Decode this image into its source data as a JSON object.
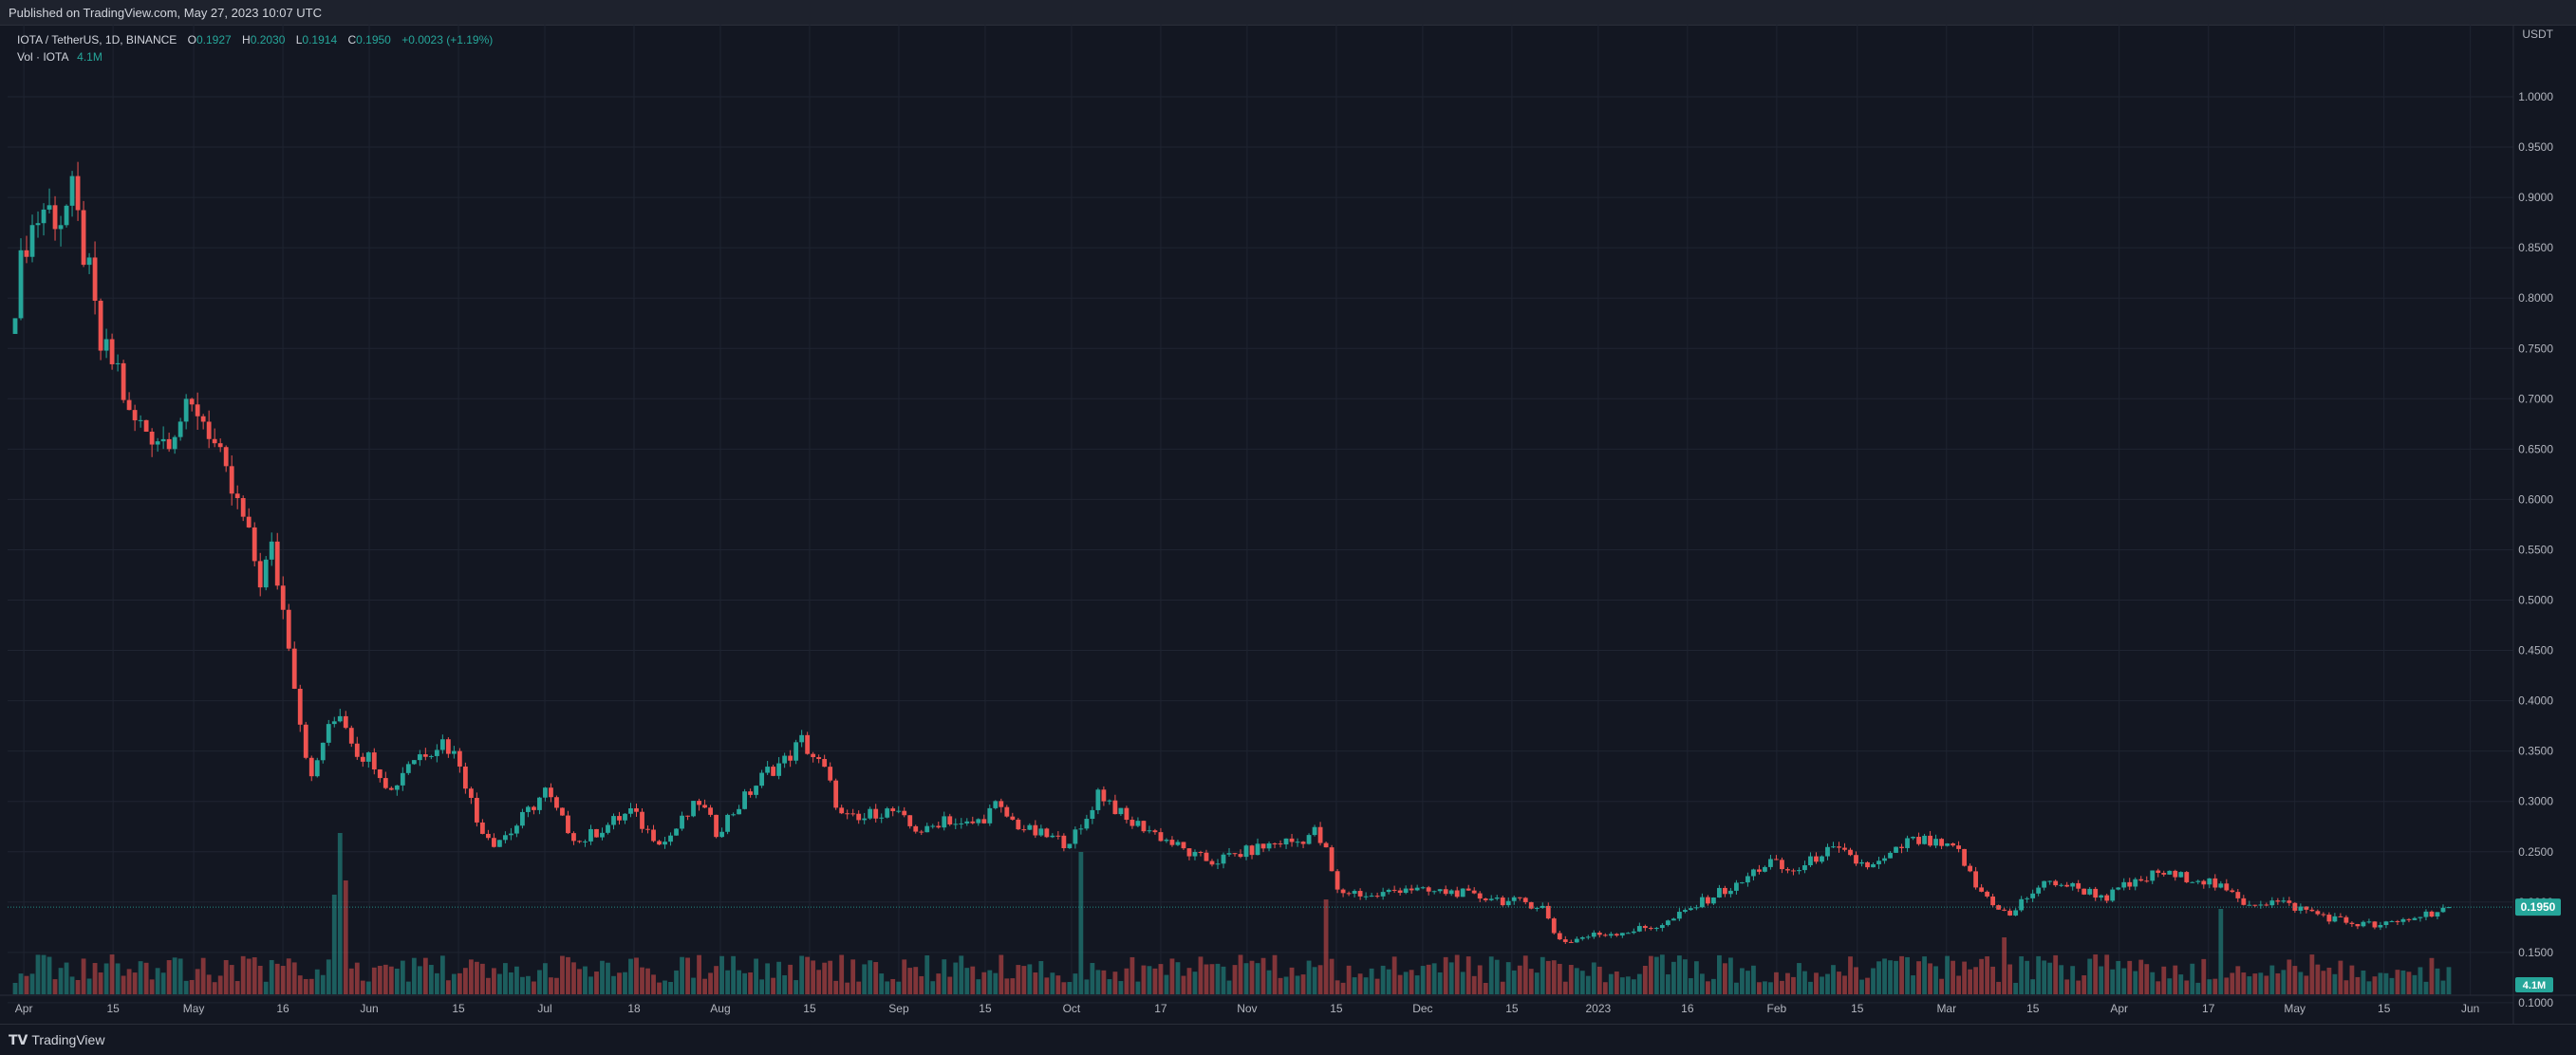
{
  "header": {
    "published": "Published on TradingView.com, May 27, 2023 10:07 UTC"
  },
  "legend": {
    "symbol": "IOTA / TetherUS, 1D, BINANCE",
    "o_label": "O",
    "o_value": "0.1927",
    "h_label": "H",
    "h_value": "0.2030",
    "l_label": "L",
    "l_value": "0.1914",
    "c_label": "C",
    "c_value": "0.1950",
    "change": "+0.0023 (+1.19%)",
    "vol_label": "Vol · IOTA",
    "vol_value": "4.1M"
  },
  "footer": {
    "brand": "TradingView",
    "logo_icon": "tradingview-logo-icon"
  },
  "colors": {
    "up": "#26a69a",
    "down": "#ef5350",
    "background": "#131722",
    "grid": "#1f2431"
  },
  "chart_data": {
    "type": "candlestick",
    "currency": "USDT",
    "y_ticks": [
      "1.0000",
      "0.9500",
      "0.9000",
      "0.8500",
      "0.8000",
      "0.7500",
      "0.7000",
      "0.6500",
      "0.6000",
      "0.5500",
      "0.5000",
      "0.4500",
      "0.4000",
      "0.3500",
      "0.3000",
      "0.2500",
      "0.2000",
      "0.1500",
      "0.1000"
    ],
    "ylim": [
      0.09,
      1.0
    ],
    "x_ticks": [
      "Apr",
      "15",
      "May",
      "16",
      "Jun",
      "15",
      "Jul",
      "18",
      "Aug",
      "15",
      "Sep",
      "15",
      "Oct",
      "17",
      "Nov",
      "15",
      "Dec",
      "15",
      "2023",
      "16",
      "Feb",
      "15",
      "Mar",
      "15",
      "Apr",
      "17",
      "May",
      "15",
      "Jun"
    ],
    "last_price": "0.1950",
    "last_volume": "4.1M",
    "close_path": [
      [
        0,
        0.8
      ],
      [
        2,
        0.86
      ],
      [
        5,
        0.89
      ],
      [
        8,
        0.88
      ],
      [
        10,
        0.9
      ],
      [
        13,
        0.82
      ],
      [
        15,
        0.75
      ],
      [
        18,
        0.73
      ],
      [
        20,
        0.68
      ],
      [
        23,
        0.67
      ],
      [
        26,
        0.66
      ],
      [
        29,
        0.68
      ],
      [
        32,
        0.69
      ],
      [
        34,
        0.67
      ],
      [
        37,
        0.62
      ],
      [
        40,
        0.58
      ],
      [
        43,
        0.52
      ],
      [
        45,
        0.55
      ],
      [
        48,
        0.46
      ],
      [
        50,
        0.38
      ],
      [
        52,
        0.32
      ],
      [
        54,
        0.36
      ],
      [
        57,
        0.39
      ],
      [
        60,
        0.35
      ],
      [
        63,
        0.34
      ],
      [
        66,
        0.31
      ],
      [
        69,
        0.34
      ],
      [
        72,
        0.35
      ],
      [
        75,
        0.36
      ],
      [
        78,
        0.34
      ],
      [
        81,
        0.28
      ],
      [
        84,
        0.26
      ],
      [
        87,
        0.27
      ],
      [
        90,
        0.29
      ],
      [
        93,
        0.31
      ],
      [
        96,
        0.28
      ],
      [
        99,
        0.26
      ],
      [
        102,
        0.27
      ],
      [
        105,
        0.28
      ],
      [
        108,
        0.29
      ],
      [
        111,
        0.27
      ],
      [
        114,
        0.26
      ],
      [
        117,
        0.28
      ],
      [
        120,
        0.3
      ],
      [
        123,
        0.27
      ],
      [
        126,
        0.29
      ],
      [
        129,
        0.31
      ],
      [
        132,
        0.33
      ],
      [
        135,
        0.34
      ],
      [
        138,
        0.36
      ],
      [
        140,
        0.345
      ],
      [
        142,
        0.33
      ],
      [
        145,
        0.285
      ],
      [
        148,
        0.28
      ],
      [
        151,
        0.29
      ],
      [
        154,
        0.29
      ],
      [
        157,
        0.275
      ],
      [
        160,
        0.27
      ],
      [
        163,
        0.285
      ],
      [
        166,
        0.275
      ],
      [
        169,
        0.28
      ],
      [
        172,
        0.295
      ],
      [
        175,
        0.28
      ],
      [
        178,
        0.27
      ],
      [
        181,
        0.265
      ],
      [
        184,
        0.26
      ],
      [
        187,
        0.27
      ],
      [
        190,
        0.31
      ],
      [
        192,
        0.3
      ],
      [
        195,
        0.28
      ],
      [
        198,
        0.275
      ],
      [
        201,
        0.265
      ],
      [
        204,
        0.255
      ],
      [
        207,
        0.245
      ],
      [
        210,
        0.24
      ],
      [
        213,
        0.245
      ],
      [
        216,
        0.25
      ],
      [
        219,
        0.255
      ],
      [
        222,
        0.26
      ],
      [
        225,
        0.26
      ],
      [
        228,
        0.27
      ],
      [
        230,
        0.25
      ],
      [
        232,
        0.21
      ],
      [
        235,
        0.21
      ],
      [
        238,
        0.205
      ],
      [
        241,
        0.21
      ],
      [
        244,
        0.215
      ],
      [
        247,
        0.21
      ],
      [
        250,
        0.21
      ],
      [
        253,
        0.21
      ],
      [
        256,
        0.205
      ],
      [
        259,
        0.205
      ],
      [
        262,
        0.2
      ],
      [
        265,
        0.2
      ],
      [
        268,
        0.195
      ],
      [
        270,
        0.17
      ],
      [
        272,
        0.16
      ],
      [
        275,
        0.165
      ],
      [
        278,
        0.168
      ],
      [
        281,
        0.17
      ],
      [
        284,
        0.172
      ],
      [
        287,
        0.175
      ],
      [
        290,
        0.18
      ],
      [
        293,
        0.19
      ],
      [
        296,
        0.2
      ],
      [
        299,
        0.21
      ],
      [
        302,
        0.215
      ],
      [
        305,
        0.23
      ],
      [
        308,
        0.24
      ],
      [
        311,
        0.23
      ],
      [
        314,
        0.235
      ],
      [
        317,
        0.25
      ],
      [
        320,
        0.25
      ],
      [
        323,
        0.24
      ],
      [
        326,
        0.235
      ],
      [
        329,
        0.245
      ],
      [
        332,
        0.26
      ],
      [
        335,
        0.26
      ],
      [
        338,
        0.255
      ],
      [
        341,
        0.25
      ],
      [
        344,
        0.215
      ],
      [
        347,
        0.2
      ],
      [
        350,
        0.185
      ],
      [
        352,
        0.2
      ],
      [
        355,
        0.215
      ],
      [
        358,
        0.22
      ],
      [
        361,
        0.215
      ],
      [
        364,
        0.21
      ],
      [
        367,
        0.205
      ],
      [
        370,
        0.215
      ],
      [
        373,
        0.22
      ],
      [
        376,
        0.23
      ],
      [
        379,
        0.225
      ],
      [
        382,
        0.225
      ],
      [
        385,
        0.22
      ],
      [
        388,
        0.21
      ],
      [
        391,
        0.2
      ],
      [
        394,
        0.2
      ],
      [
        397,
        0.2
      ],
      [
        400,
        0.195
      ],
      [
        403,
        0.19
      ],
      [
        406,
        0.185
      ],
      [
        409,
        0.18
      ],
      [
        412,
        0.178
      ],
      [
        415,
        0.176
      ],
      [
        418,
        0.18
      ],
      [
        421,
        0.185
      ],
      [
        424,
        0.19
      ],
      [
        427,
        0.195
      ]
    ]
  }
}
